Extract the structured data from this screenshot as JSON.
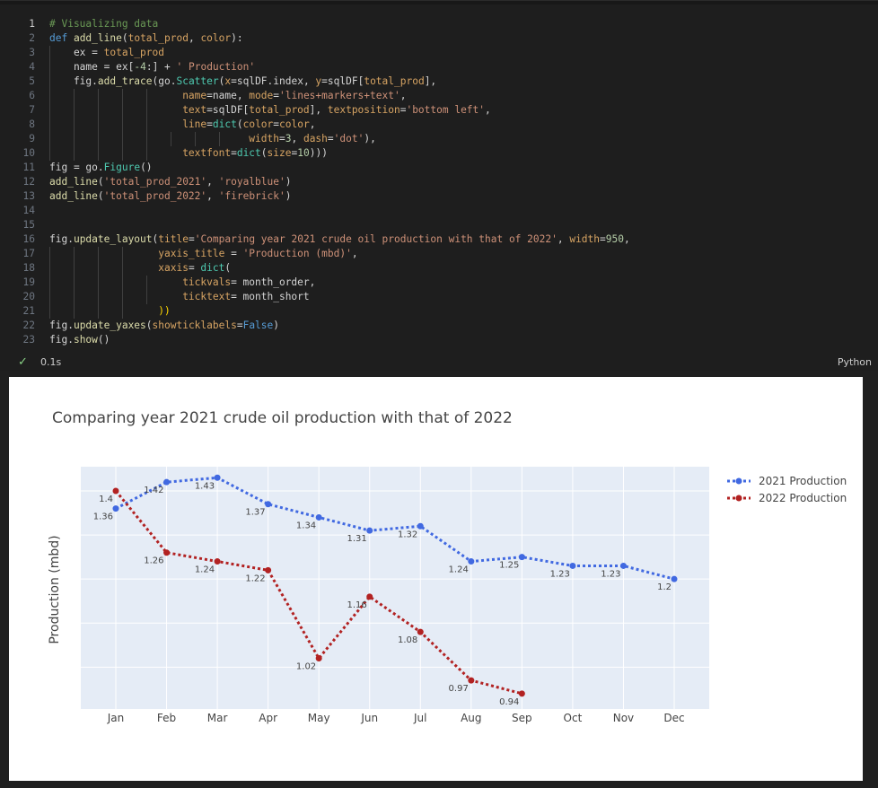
{
  "code_cell": {
    "lines": [
      {
        "n": "1",
        "tokens": [
          [
            "# Visualizing data",
            "#6a9955"
          ]
        ]
      },
      {
        "n": "2",
        "tokens": [
          [
            "def ",
            "#569cd6"
          ],
          [
            "add_line",
            "#dcdcaa"
          ],
          [
            "(",
            "#d4d4d4"
          ],
          [
            "total_prod",
            "#d7a463"
          ],
          [
            ", ",
            "#d4d4d4"
          ],
          [
            "color",
            "#d7a463"
          ],
          [
            "):",
            "#d4d4d4"
          ]
        ]
      },
      {
        "n": "3",
        "tokens": [
          [
            "    ex ",
            "#d4d4d4"
          ],
          [
            "= ",
            "#d4d4d4"
          ],
          [
            "total_prod",
            "#d7a463"
          ]
        ]
      },
      {
        "n": "4",
        "tokens": [
          [
            "    name ",
            "#d4d4d4"
          ],
          [
            "= ",
            "#d4d4d4"
          ],
          [
            "ex",
            "#d4d4d4"
          ],
          [
            "[",
            "#d4d4d4"
          ],
          [
            "-4",
            "#b5cea8"
          ],
          [
            ":] + ",
            "#d4d4d4"
          ],
          [
            "' Production'",
            "#ce9178"
          ]
        ]
      },
      {
        "n": "5",
        "tokens": [
          [
            "    fig.",
            "#d4d4d4"
          ],
          [
            "add_trace",
            "#dcdcaa"
          ],
          [
            "(go.",
            "#d4d4d4"
          ],
          [
            "Scatter",
            "#4ec9b0"
          ],
          [
            "(",
            "#d4d4d4"
          ],
          [
            "x",
            "#d7a463"
          ],
          [
            "=sqlDF.index, ",
            "#d4d4d4"
          ],
          [
            "y",
            "#d7a463"
          ],
          [
            "=sqlDF[",
            "#d4d4d4"
          ],
          [
            "total_prod",
            "#d7a463"
          ],
          [
            "],",
            "#d4d4d4"
          ]
        ]
      },
      {
        "n": "6",
        "tokens": [
          [
            "                      ",
            "#d4d4d4"
          ],
          [
            "name",
            "#d7a463"
          ],
          [
            "=name, ",
            "#d4d4d4"
          ],
          [
            "mode",
            "#d7a463"
          ],
          [
            "=",
            "#d4d4d4"
          ],
          [
            "'lines+markers+text'",
            "#ce9178"
          ],
          [
            ",",
            "#d4d4d4"
          ]
        ]
      },
      {
        "n": "7",
        "tokens": [
          [
            "                      ",
            "#d4d4d4"
          ],
          [
            "text",
            "#d7a463"
          ],
          [
            "=sqlDF[",
            "#d4d4d4"
          ],
          [
            "total_prod",
            "#d7a463"
          ],
          [
            "], ",
            "#d4d4d4"
          ],
          [
            "textposition",
            "#d7a463"
          ],
          [
            "=",
            "#d4d4d4"
          ],
          [
            "'bottom left'",
            "#ce9178"
          ],
          [
            ",",
            "#d4d4d4"
          ]
        ]
      },
      {
        "n": "8",
        "tokens": [
          [
            "                      ",
            "#d4d4d4"
          ],
          [
            "line",
            "#d7a463"
          ],
          [
            "=",
            "#d4d4d4"
          ],
          [
            "dict",
            "#4ec9b0"
          ],
          [
            "(",
            "#d4d4d4"
          ],
          [
            "color",
            "#d7a463"
          ],
          [
            "=",
            "#d4d4d4"
          ],
          [
            "color",
            "#d7a463"
          ],
          [
            ",",
            "#d4d4d4"
          ]
        ]
      },
      {
        "n": "9",
        "tokens": [
          [
            "                                 ",
            "#d4d4d4"
          ],
          [
            "width",
            "#d7a463"
          ],
          [
            "=",
            "#d4d4d4"
          ],
          [
            "3",
            "#b5cea8"
          ],
          [
            ", ",
            "#d4d4d4"
          ],
          [
            "dash",
            "#d7a463"
          ],
          [
            "=",
            "#d4d4d4"
          ],
          [
            "'dot'",
            "#ce9178"
          ],
          [
            "),",
            "#d4d4d4"
          ]
        ]
      },
      {
        "n": "10",
        "tokens": [
          [
            "                      ",
            "#d4d4d4"
          ],
          [
            "textfont",
            "#d7a463"
          ],
          [
            "=",
            "#d4d4d4"
          ],
          [
            "dict",
            "#4ec9b0"
          ],
          [
            "(",
            "#d4d4d4"
          ],
          [
            "size",
            "#d7a463"
          ],
          [
            "=",
            "#d4d4d4"
          ],
          [
            "10",
            "#b5cea8"
          ],
          [
            ")))",
            "#d4d4d4"
          ]
        ]
      },
      {
        "n": "11",
        "tokens": [
          [
            "fig ",
            "#d4d4d4"
          ],
          [
            "= go.",
            "#d4d4d4"
          ],
          [
            "Figure",
            "#4ec9b0"
          ],
          [
            "()",
            "#d4d4d4"
          ]
        ]
      },
      {
        "n": "12",
        "tokens": [
          [
            "add_line",
            "#dcdcaa"
          ],
          [
            "(",
            "#d4d4d4"
          ],
          [
            "'total_prod_2021'",
            "#ce9178"
          ],
          [
            ", ",
            "#d4d4d4"
          ],
          [
            "'royalblue'",
            "#ce9178"
          ],
          [
            ")",
            "#d4d4d4"
          ]
        ]
      },
      {
        "n": "13",
        "tokens": [
          [
            "add_line",
            "#dcdcaa"
          ],
          [
            "(",
            "#d4d4d4"
          ],
          [
            "'total_prod_2022'",
            "#ce9178"
          ],
          [
            ", ",
            "#d4d4d4"
          ],
          [
            "'firebrick'",
            "#ce9178"
          ],
          [
            ")",
            "#d4d4d4"
          ]
        ]
      },
      {
        "n": "14",
        "tokens": []
      },
      {
        "n": "15",
        "tokens": []
      },
      {
        "n": "16",
        "tokens": [
          [
            "fig.",
            "#d4d4d4"
          ],
          [
            "update_layout",
            "#dcdcaa"
          ],
          [
            "(",
            "#d4d4d4"
          ],
          [
            "title",
            "#d7a463"
          ],
          [
            "=",
            "#d4d4d4"
          ],
          [
            "'Comparing year 2021 crude oil production with that of 2022'",
            "#ce9178"
          ],
          [
            ", ",
            "#d4d4d4"
          ],
          [
            "width",
            "#d7a463"
          ],
          [
            "=",
            "#d4d4d4"
          ],
          [
            "950",
            "#b5cea8"
          ],
          [
            ",",
            "#d4d4d4"
          ]
        ]
      },
      {
        "n": "17",
        "tokens": [
          [
            "                  ",
            "#d4d4d4"
          ],
          [
            "yaxis_title",
            "#d7a463"
          ],
          [
            " = ",
            "#d4d4d4"
          ],
          [
            "'Production (mbd)'",
            "#ce9178"
          ],
          [
            ",",
            "#d4d4d4"
          ]
        ]
      },
      {
        "n": "18",
        "tokens": [
          [
            "                  ",
            "#d4d4d4"
          ],
          [
            "xaxis",
            "#d7a463"
          ],
          [
            "= ",
            "#d4d4d4"
          ],
          [
            "dict",
            "#4ec9b0"
          ],
          [
            "(",
            "#d4d4d4"
          ]
        ]
      },
      {
        "n": "19",
        "tokens": [
          [
            "                      ",
            "#d4d4d4"
          ],
          [
            "tickvals",
            "#d7a463"
          ],
          [
            "= month_order,",
            "#d4d4d4"
          ]
        ]
      },
      {
        "n": "20",
        "tokens": [
          [
            "                      ",
            "#d4d4d4"
          ],
          [
            "ticktext",
            "#d7a463"
          ],
          [
            "= month_short",
            "#d4d4d4"
          ]
        ]
      },
      {
        "n": "21",
        "tokens": [
          [
            "                  ",
            "#d4d4d4"
          ],
          [
            "))",
            "#ffd700"
          ]
        ]
      },
      {
        "n": "22",
        "tokens": [
          [
            "fig.",
            "#d4d4d4"
          ],
          [
            "update_yaxes",
            "#dcdcaa"
          ],
          [
            "(",
            "#d4d4d4"
          ],
          [
            "showticklabels",
            "#d7a463"
          ],
          [
            "=",
            "#d4d4d4"
          ],
          [
            "False",
            "#569cd6"
          ],
          [
            ")",
            "#d4d4d4"
          ]
        ]
      },
      {
        "n": "23",
        "tokens": [
          [
            "fig.",
            "#d4d4d4"
          ],
          [
            "show",
            "#dcdcaa"
          ],
          [
            "()",
            "#d4d4d4"
          ]
        ]
      }
    ],
    "exec_check": "✓",
    "exec_time": "0.1s",
    "language": "Python"
  },
  "chart_data": {
    "type": "line",
    "title": "Comparing year 2021 crude oil production with that of 2022",
    "ylabel": "Production (mbd)",
    "xlabel": "",
    "categories": [
      "Jan",
      "Feb",
      "Mar",
      "Apr",
      "May",
      "Jun",
      "Jul",
      "Aug",
      "Sep",
      "Oct",
      "Nov",
      "Dec"
    ],
    "ylim": [
      0.905,
      1.455
    ],
    "y_gridlines": [
      1.0,
      1.1,
      1.2,
      1.3,
      1.4
    ],
    "show_y_tick_labels": false,
    "legend_position": "top-right",
    "series": [
      {
        "name": "2021 Production",
        "color": "#4169e1",
        "values": [
          1.36,
          1.42,
          1.43,
          1.37,
          1.34,
          1.31,
          1.32,
          1.24,
          1.25,
          1.23,
          1.23,
          1.2
        ]
      },
      {
        "name": "2022 Production",
        "color": "#b22222",
        "values": [
          1.4,
          1.26,
          1.24,
          1.22,
          1.02,
          1.16,
          1.08,
          0.97,
          0.94,
          null,
          null,
          null
        ]
      }
    ],
    "data_labels": [
      [
        "1.36",
        "1.42",
        "1.43",
        "1.37",
        "1.34",
        "1.31",
        "1.32",
        "1.24",
        "1.25",
        "1.23",
        "1.23",
        "1.2"
      ],
      [
        "1.4",
        "1.26",
        "1.24",
        "1.22",
        "1.02",
        "1.16",
        "1.08",
        "0.97",
        "0.94",
        "",
        "",
        ""
      ]
    ]
  }
}
